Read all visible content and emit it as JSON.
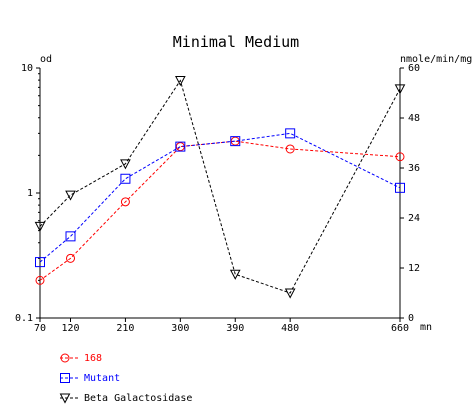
{
  "chart_data": {
    "type": "line",
    "title": "Minimal Medium",
    "x": [
      70,
      120,
      210,
      300,
      390,
      480,
      660
    ],
    "x_tick_labels": [
      "70",
      "120",
      "210",
      "300",
      "390",
      "480",
      "660"
    ],
    "x_unit": "mn",
    "y_left": {
      "label": "od",
      "scale": "log",
      "range": [
        0.1,
        10
      ],
      "ticks": [
        0.1,
        1,
        10
      ],
      "tick_labels": [
        "0.1",
        "1",
        "10"
      ]
    },
    "y_right": {
      "label": "nmole/min/mg",
      "scale": "linear",
      "range": [
        0,
        60
      ],
      "ticks": [
        0,
        12,
        24,
        36,
        48,
        60
      ],
      "tick_labels": [
        "0",
        "12",
        "24",
        "36",
        "48",
        "60"
      ]
    },
    "grid": false,
    "legend_position": "bottom-left",
    "series": [
      {
        "name": "168",
        "axis": "left",
        "color": "#ff0000",
        "marker": "circle",
        "values": [
          0.2,
          0.3,
          0.85,
          2.35,
          2.6,
          2.25,
          1.95
        ]
      },
      {
        "name": "Mutant",
        "axis": "left",
        "color": "#0000ff",
        "marker": "square",
        "values": [
          0.28,
          0.45,
          1.3,
          2.35,
          2.6,
          3.0,
          1.1
        ]
      },
      {
        "name": "Beta Galactosidase",
        "axis": "right",
        "color": "#000000",
        "marker": "triangle-down",
        "values": [
          22,
          29.5,
          37,
          57,
          10.5,
          6,
          55
        ]
      }
    ]
  }
}
